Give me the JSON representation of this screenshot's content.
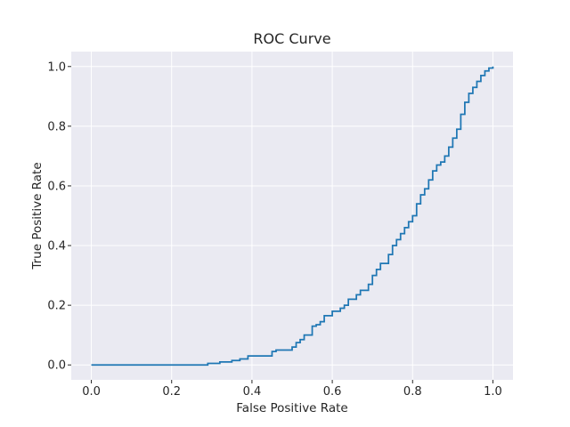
{
  "chart_data": {
    "type": "line",
    "title": "ROC Curve",
    "xlabel": "False Positive Rate",
    "ylabel": "True Positive Rate",
    "xlim": [
      -0.05,
      1.05
    ],
    "ylim": [
      -0.05,
      1.05
    ],
    "xticks": [
      0.0,
      0.2,
      0.4,
      0.6,
      0.8,
      1.0
    ],
    "yticks": [
      0.0,
      0.2,
      0.4,
      0.6,
      0.8,
      1.0
    ],
    "xtick_labels": [
      "0.0",
      "0.2",
      "0.4",
      "0.6",
      "0.8",
      "1.0"
    ],
    "ytick_labels": [
      "0.0",
      "0.2",
      "0.4",
      "0.6",
      "0.8",
      "1.0"
    ],
    "grid": true,
    "background": "#eaeaf2",
    "series": [
      {
        "color": "#1f77b4",
        "step": true,
        "x": [
          0.0,
          0.29,
          0.32,
          0.35,
          0.37,
          0.39,
          0.45,
          0.46,
          0.5,
          0.51,
          0.52,
          0.53,
          0.55,
          0.56,
          0.57,
          0.58,
          0.6,
          0.62,
          0.63,
          0.64,
          0.66,
          0.67,
          0.69,
          0.7,
          0.71,
          0.72,
          0.74,
          0.75,
          0.76,
          0.77,
          0.78,
          0.79,
          0.8,
          0.81,
          0.82,
          0.83,
          0.84,
          0.85,
          0.86,
          0.87,
          0.88,
          0.89,
          0.9,
          0.91,
          0.92,
          0.93,
          0.94,
          0.95,
          0.96,
          0.97,
          0.98,
          0.99,
          1.0
        ],
        "y": [
          0.0,
          0.005,
          0.01,
          0.015,
          0.02,
          0.03,
          0.045,
          0.05,
          0.06,
          0.075,
          0.085,
          0.1,
          0.13,
          0.135,
          0.145,
          0.165,
          0.18,
          0.19,
          0.2,
          0.22,
          0.235,
          0.25,
          0.27,
          0.3,
          0.32,
          0.34,
          0.37,
          0.4,
          0.42,
          0.44,
          0.46,
          0.48,
          0.5,
          0.54,
          0.57,
          0.59,
          0.62,
          0.65,
          0.67,
          0.68,
          0.7,
          0.73,
          0.76,
          0.79,
          0.84,
          0.88,
          0.91,
          0.93,
          0.95,
          0.97,
          0.985,
          0.995,
          1.0
        ]
      }
    ]
  }
}
